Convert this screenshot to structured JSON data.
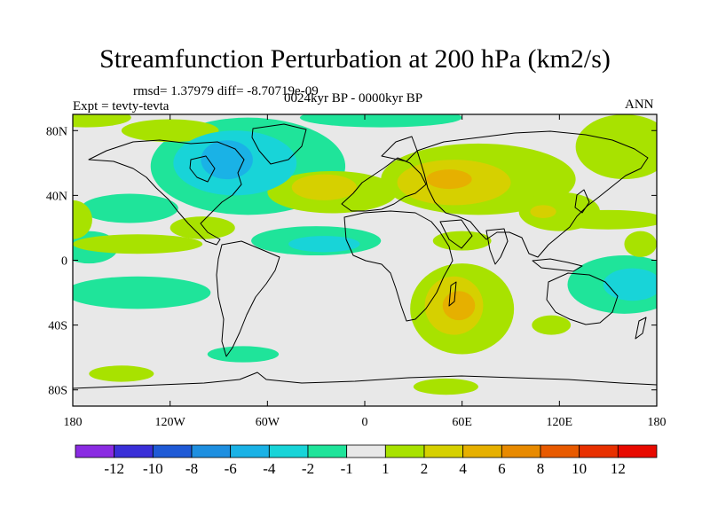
{
  "title": "Streamfunction Perturbation at 200 hPa (km2/s)",
  "stats": "rmsd= 1.37979 diff= -8.70719e-09",
  "experiment": "Expt = tevty-tevta",
  "period": "0024kyr BP - 0000kyr BP",
  "season": "ANN",
  "chart_data": {
    "type": "heatmap",
    "projection": "cylindrical-equidistant",
    "xlim": [
      -180,
      180
    ],
    "ylim": [
      -90,
      90
    ],
    "x_ticks": [
      {
        "value": -180,
        "label": "180"
      },
      {
        "value": -120,
        "label": "120W"
      },
      {
        "value": -60,
        "label": "60W"
      },
      {
        "value": 0,
        "label": "0"
      },
      {
        "value": 60,
        "label": "60E"
      },
      {
        "value": 120,
        "label": "120E"
      },
      {
        "value": 180,
        "label": "180"
      }
    ],
    "y_ticks": [
      {
        "value": 80,
        "label": "80N"
      },
      {
        "value": 40,
        "label": "40N"
      },
      {
        "value": 0,
        "label": "0"
      },
      {
        "value": -40,
        "label": "40S"
      },
      {
        "value": -80,
        "label": "80S"
      }
    ],
    "colorbar": {
      "levels": [
        -12,
        -10,
        -8,
        -6,
        -4,
        -2,
        -1,
        1,
        2,
        4,
        6,
        8,
        10,
        12
      ],
      "colors": [
        "#8a2be2",
        "#3a2fd8",
        "#1f5ad6",
        "#1e8fe0",
        "#1ab2e6",
        "#18d4d8",
        "#1fe49a",
        "#e8e8e8",
        "#a8e200",
        "#d6d000",
        "#e6b000",
        "#e88a00",
        "#e85a00",
        "#e83000",
        "#e80a00"
      ]
    },
    "regions": [
      {
        "level": -1,
        "lon": -170,
        "lat": 8,
        "rx": 18,
        "ry": 10
      },
      {
        "level": -1,
        "lon": -140,
        "lat": -20,
        "rx": 45,
        "ry": 10
      },
      {
        "level": -1,
        "lon": -145,
        "lat": 32,
        "rx": 30,
        "ry": 9
      },
      {
        "level": -1,
        "lon": -72,
        "lat": 58,
        "rx": 60,
        "ry": 30
      },
      {
        "level": -1,
        "lon": 10,
        "lat": 88,
        "rx": 50,
        "ry": 6
      },
      {
        "level": -1,
        "lon": -30,
        "lat": 12,
        "rx": 40,
        "ry": 9
      },
      {
        "level": -1,
        "lon": 160,
        "lat": -15,
        "rx": 35,
        "ry": 18
      },
      {
        "level": -1,
        "lon": -75,
        "lat": -58,
        "rx": 22,
        "ry": 5
      },
      {
        "level": -2,
        "lon": -80,
        "lat": 60,
        "rx": 38,
        "ry": 20
      },
      {
        "level": -2,
        "lon": -25,
        "lat": 10,
        "rx": 22,
        "ry": 5
      },
      {
        "level": -2,
        "lon": 165,
        "lat": -15,
        "rx": 18,
        "ry": 10
      },
      {
        "level": -4,
        "lon": -85,
        "lat": 62,
        "rx": 16,
        "ry": 12
      },
      {
        "level": 1,
        "lon": -172,
        "lat": 88,
        "rx": 28,
        "ry": 6
      },
      {
        "level": 1,
        "lon": -180,
        "lat": 25,
        "rx": 12,
        "ry": 12
      },
      {
        "level": 1,
        "lon": -20,
        "lat": 42,
        "rx": 40,
        "ry": 13
      },
      {
        "level": 1,
        "lon": 70,
        "lat": 50,
        "rx": 60,
        "ry": 22
      },
      {
        "level": 1,
        "lon": 160,
        "lat": 70,
        "rx": 30,
        "ry": 20
      },
      {
        "level": 1,
        "lon": 60,
        "lat": 12,
        "rx": 18,
        "ry": 6
      },
      {
        "level": 1,
        "lon": 60,
        "lat": -30,
        "rx": 32,
        "ry": 28
      },
      {
        "level": 1,
        "lon": 120,
        "lat": 30,
        "rx": 25,
        "ry": 12
      },
      {
        "level": 1,
        "lon": 150,
        "lat": 25,
        "rx": 35,
        "ry": 6
      },
      {
        "level": 1,
        "lon": 115,
        "lat": -40,
        "rx": 12,
        "ry": 6
      },
      {
        "level": 1,
        "lon": -150,
        "lat": -70,
        "rx": 20,
        "ry": 5
      },
      {
        "level": 1,
        "lon": 50,
        "lat": -78,
        "rx": 20,
        "ry": 5
      },
      {
        "level": 1,
        "lon": -120,
        "lat": 80,
        "rx": 30,
        "ry": 7
      },
      {
        "level": 1,
        "lon": -100,
        "lat": 20,
        "rx": 20,
        "ry": 7
      },
      {
        "level": 1,
        "lon": 170,
        "lat": 10,
        "rx": 10,
        "ry": 8
      },
      {
        "level": 1,
        "lon": -140,
        "lat": 10,
        "rx": 40,
        "ry": 6
      },
      {
        "level": 2,
        "lon": -25,
        "lat": 45,
        "rx": 20,
        "ry": 8
      },
      {
        "level": 2,
        "lon": 55,
        "lat": 48,
        "rx": 35,
        "ry": 14
      },
      {
        "level": 2,
        "lon": 55,
        "lat": -28,
        "rx": 18,
        "ry": 18
      },
      {
        "level": 2,
        "lon": 110,
        "lat": 30,
        "rx": 8,
        "ry": 4
      },
      {
        "level": 4,
        "lon": 52,
        "lat": 50,
        "rx": 14,
        "ry": 6
      },
      {
        "level": 4,
        "lon": 58,
        "lat": -28,
        "rx": 10,
        "ry": 9
      }
    ]
  }
}
